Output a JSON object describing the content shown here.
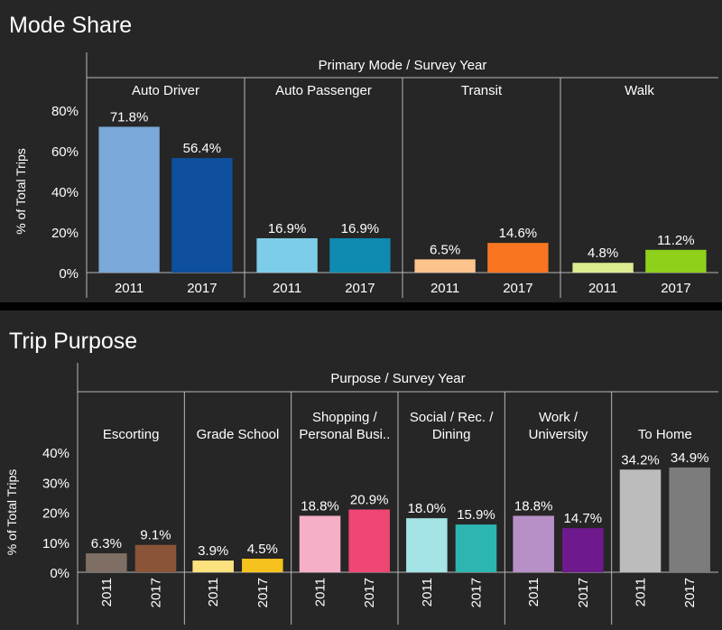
{
  "chart_data": [
    {
      "type": "bar",
      "title": "Mode Share",
      "header": "Primary Mode  /  Survey Year",
      "ylabel": "% of Total Trips",
      "ylim": [
        0,
        80
      ],
      "yticks": [
        "0%",
        "20%",
        "40%",
        "60%",
        "80%"
      ],
      "ytick_values": [
        0,
        20,
        40,
        60,
        80
      ],
      "years": [
        "2011",
        "2017"
      ],
      "groups": [
        {
          "label": [
            "Auto Driver"
          ],
          "values": [
            71.8,
            56.4
          ],
          "labels": [
            "71.8%",
            "56.4%"
          ],
          "colors": [
            "#7aa8d8",
            "#0e4f9e"
          ]
        },
        {
          "label": [
            "Auto Passenger"
          ],
          "values": [
            16.9,
            16.9
          ],
          "labels": [
            "16.9%",
            "16.9%"
          ],
          "colors": [
            "#7ecde8",
            "#0f8ab0"
          ]
        },
        {
          "label": [
            "Transit"
          ],
          "values": [
            6.5,
            14.6
          ],
          "labels": [
            "6.5%",
            "14.6%"
          ],
          "colors": [
            "#fcc48c",
            "#f97521"
          ]
        },
        {
          "label": [
            "Walk"
          ],
          "values": [
            4.8,
            11.2
          ],
          "labels": [
            "4.8%",
            "11.2%"
          ],
          "colors": [
            "#dcec90",
            "#8ed01a"
          ]
        }
      ]
    },
    {
      "type": "bar",
      "title": "Trip Purpose",
      "header": "Purpose  /  Survey Year",
      "ylabel": "% of Total Trips",
      "ylim": [
        0,
        40
      ],
      "yticks": [
        "0%",
        "10%",
        "20%",
        "30%",
        "40%"
      ],
      "ytick_values": [
        0,
        10,
        20,
        30,
        40
      ],
      "years": [
        "2011",
        "2017"
      ],
      "groups": [
        {
          "label": [
            "Escorting"
          ],
          "values": [
            6.3,
            9.1
          ],
          "labels": [
            "6.3%",
            "9.1%"
          ],
          "colors": [
            "#7f6e64",
            "#8a5439"
          ]
        },
        {
          "label": [
            "Grade School"
          ],
          "values": [
            3.9,
            4.5
          ],
          "labels": [
            "3.9%",
            "4.5%"
          ],
          "colors": [
            "#fbe27e",
            "#f6c21e"
          ]
        },
        {
          "label": [
            "Shopping /",
            "Personal Busi.."
          ],
          "values": [
            18.8,
            20.9
          ],
          "labels": [
            "18.8%",
            "20.9%"
          ],
          "colors": [
            "#f5afc6",
            "#ef4674"
          ]
        },
        {
          "label": [
            "Social / Rec. /",
            "Dining"
          ],
          "values": [
            18.0,
            15.9
          ],
          "labels": [
            "18.0%",
            "15.9%"
          ],
          "colors": [
            "#a4e3e6",
            "#2db6b1"
          ]
        },
        {
          "label": [
            "Work /",
            "University"
          ],
          "values": [
            18.8,
            14.7
          ],
          "labels": [
            "18.8%",
            "14.7%"
          ],
          "colors": [
            "#b890c8",
            "#6e1a8e"
          ]
        },
        {
          "label": [
            "To Home"
          ],
          "values": [
            34.2,
            34.9
          ],
          "labels": [
            "34.2%",
            "34.9%"
          ],
          "colors": [
            "#bcbcbc",
            "#7c7c7c"
          ]
        }
      ]
    }
  ]
}
